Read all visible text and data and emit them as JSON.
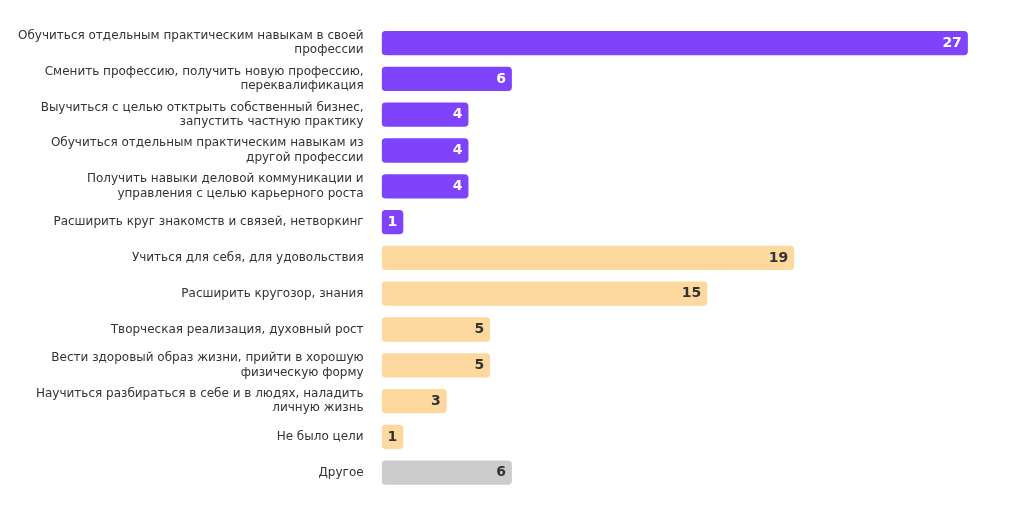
{
  "chart_data": {
    "type": "bar",
    "orientation": "horizontal",
    "data_labels": true,
    "legend": false,
    "grid": false,
    "categories": [
      "Обучиться отдельным практическим навыкам в своей профессии",
      "Сменить профессию, получить новую профессию, переквалификация",
      "Выучиться с целью отктрыть собственный бизнес, запустить частную практику",
      "Обучиться отдельным практическим навыкам из другой профессии",
      "Получить навыки деловой коммуникации и управления с целью карьерного роста",
      "Расширить круг знакомств и связей, нетворкинг",
      "Учиться для себя, для удовольствия",
      "Расширить кругозор, знания",
      "Творческая реализация, духовный рост",
      "Вести здоровый образ жизни, прийти в хорошую физическую форму",
      "Научиться разбираться в себе и в людях, наладить личную жизнь",
      "Не было цели",
      "Другое"
    ],
    "values": [
      27,
      6,
      4,
      4,
      4,
      1,
      19,
      15,
      5,
      5,
      3,
      1,
      6
    ],
    "colors": [
      "#7f43fb",
      "#7f43fb",
      "#7f43fb",
      "#7f43fb",
      "#7f43fb",
      "#7f43fb",
      "#fdd89f",
      "#fdd89f",
      "#fdd89f",
      "#fdd89f",
      "#fdd89f",
      "#fdd89f",
      "#cccccc"
    ]
  }
}
